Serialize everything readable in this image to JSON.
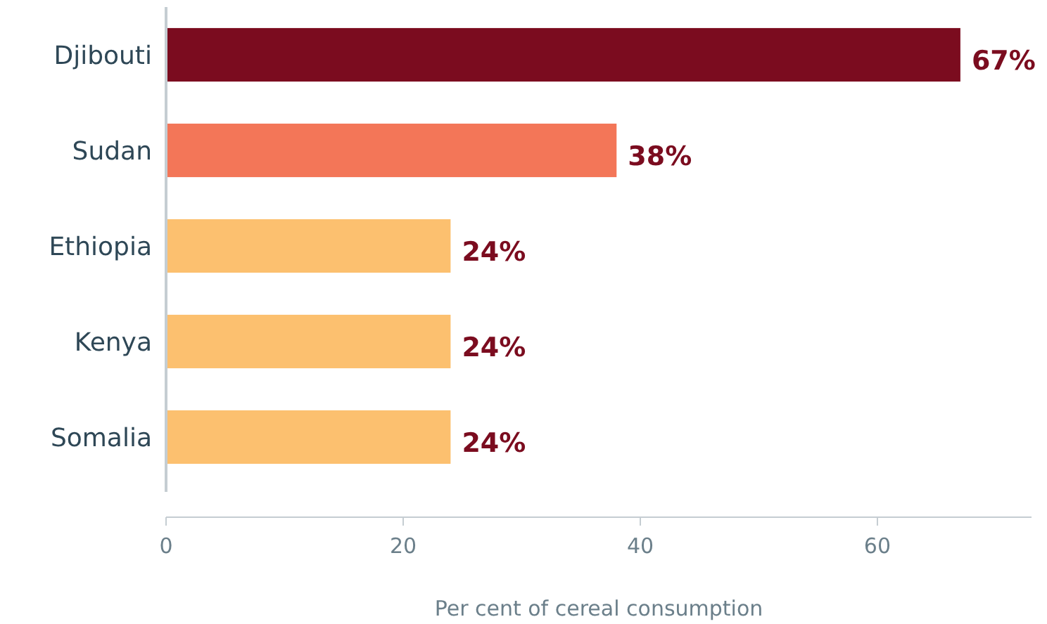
{
  "chart_data": {
    "type": "bar",
    "orientation": "horizontal",
    "xlabel": "Per cent of cereal consumption",
    "categories": [
      "Djibouti",
      "Sudan",
      "Ethiopia",
      "Kenya",
      "Somalia"
    ],
    "values": [
      67,
      38,
      24,
      24,
      24
    ],
    "colors": [
      "#7b0c1f",
      "#f37658",
      "#fcc06f",
      "#fcc06f",
      "#fcc06f"
    ],
    "value_labels": [
      "67%",
      "38%",
      "24%",
      "24%",
      "24%"
    ],
    "xlim": [
      0,
      73
    ],
    "xticks": [
      0,
      20,
      40,
      60
    ],
    "grid": false
  }
}
